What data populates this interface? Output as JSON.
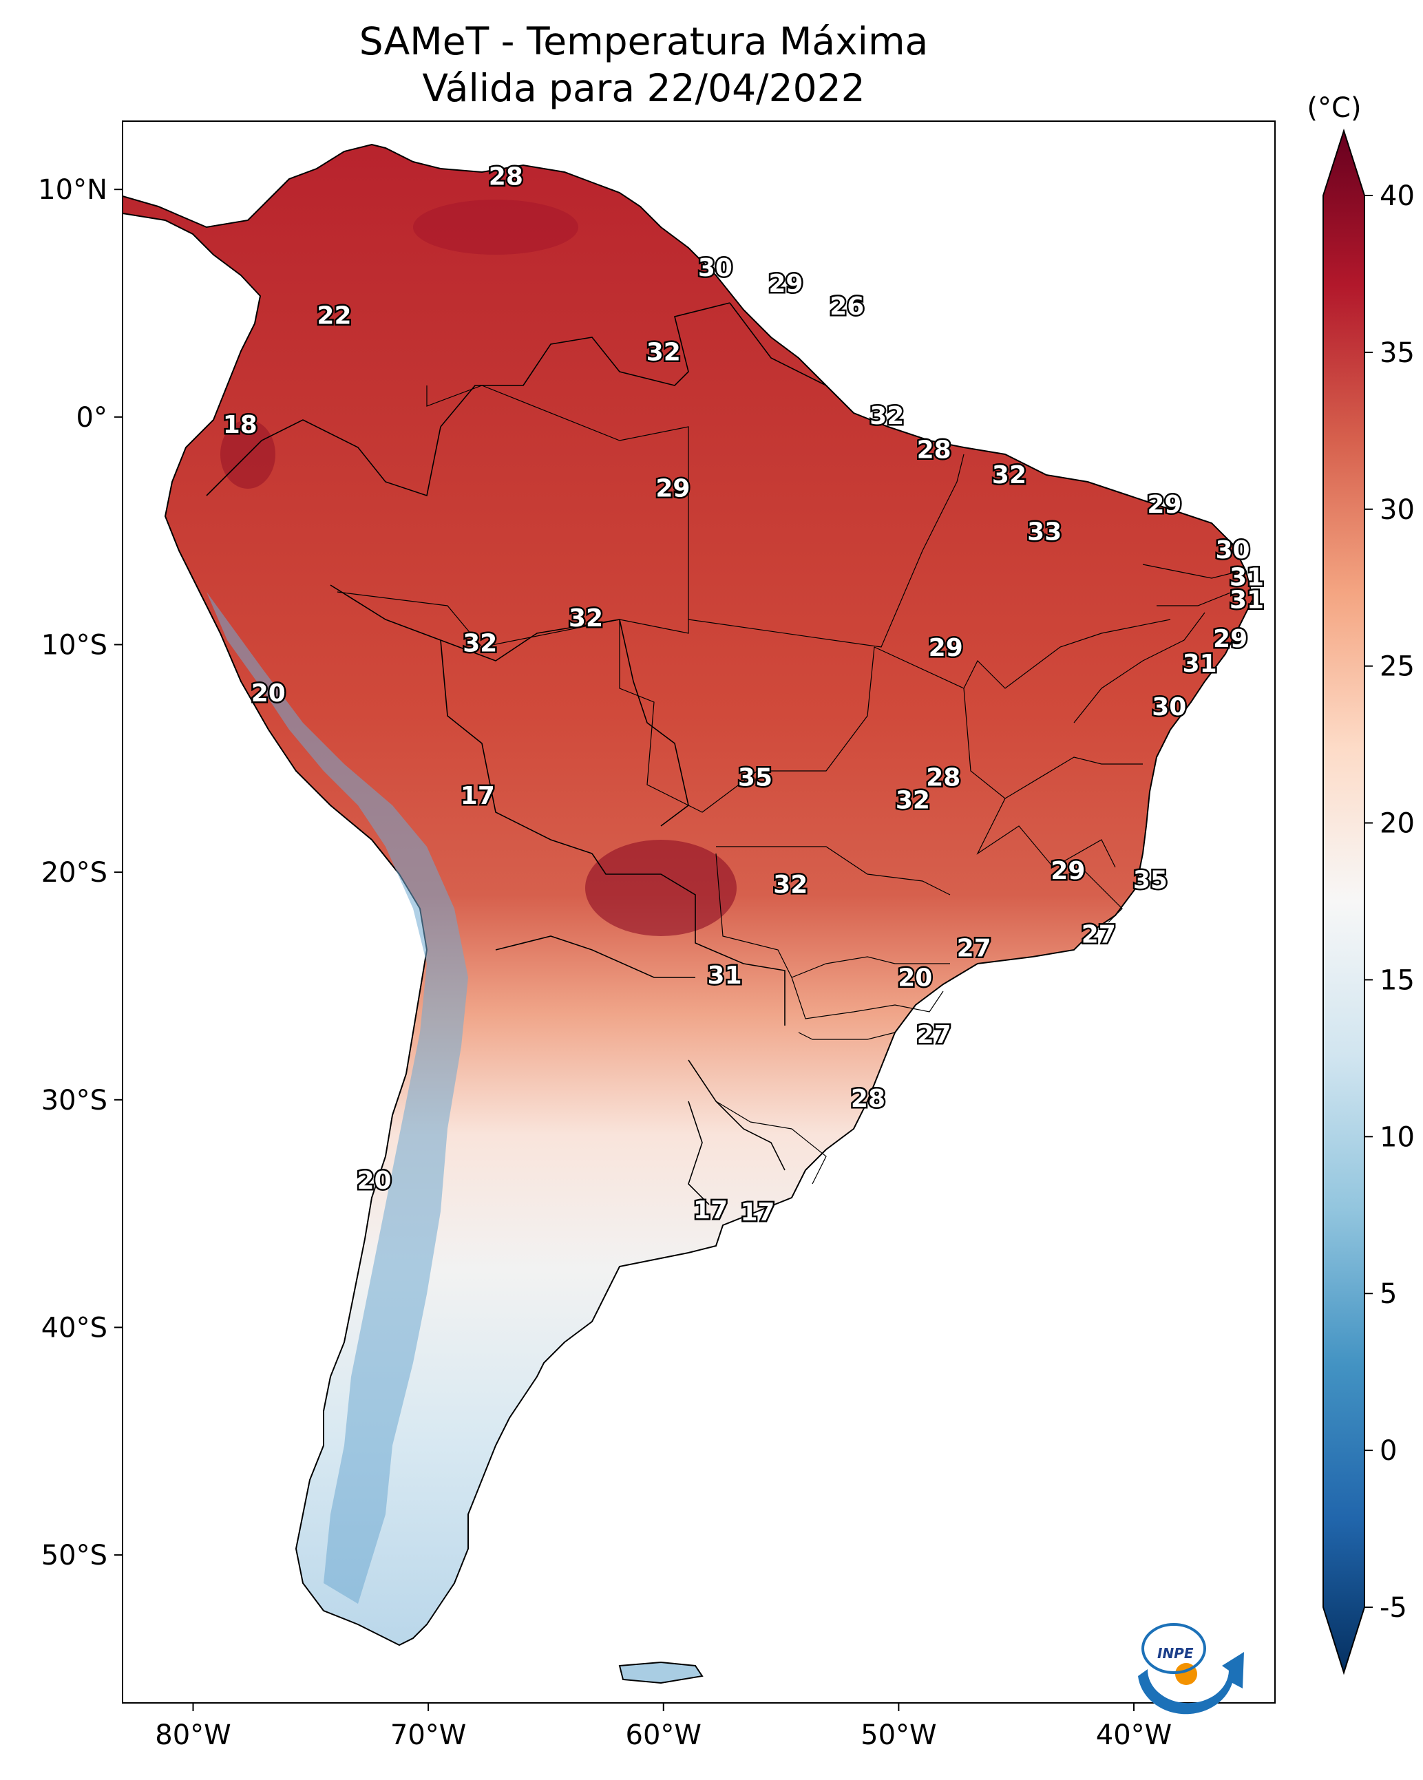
{
  "title": {
    "line1": "SAMeT - Temperatura Máxima",
    "line2": "Válida para 22/04/2022"
  },
  "axes": {
    "lat_labels": [
      "10°N",
      "0°",
      "10°S",
      "20°S",
      "30°S",
      "40°S",
      "50°S"
    ],
    "lat_values": [
      10,
      0,
      -10,
      -20,
      -30,
      -40,
      -50
    ],
    "lon_labels": [
      "80°W",
      "70°W",
      "60°W",
      "50°W",
      "40°W"
    ],
    "lon_values": [
      -80,
      -70,
      -60,
      -50,
      -40
    ],
    "extent": {
      "lon_min": -83,
      "lon_max": -34,
      "lat_min": -56.5,
      "lat_max": 13
    }
  },
  "colorbar": {
    "unit": "(°C)",
    "ticks": [
      "40",
      "35",
      "30",
      "25",
      "20",
      "15",
      "10",
      "5",
      "0",
      "-5"
    ],
    "tick_values": [
      40,
      35,
      30,
      25,
      20,
      15,
      10,
      5,
      0,
      -5
    ],
    "min": -5,
    "max": 40,
    "colors": [
      "#053061",
      "#2166ac",
      "#4393c3",
      "#92c5de",
      "#d1e5f0",
      "#f7f7f7",
      "#fddbc7",
      "#f4a582",
      "#d6604d",
      "#b2182b",
      "#67001f"
    ]
  },
  "contour_labels": [
    {
      "text": "28",
      "lon": -66.7,
      "lat": 10.5
    },
    {
      "text": "22",
      "lon": -74.0,
      "lat": 4.4
    },
    {
      "text": "30",
      "lon": -57.8,
      "lat": 6.5
    },
    {
      "text": "29",
      "lon": -54.8,
      "lat": 5.8
    },
    {
      "text": "26",
      "lon": -52.2,
      "lat": 4.8
    },
    {
      "text": "32",
      "lon": -60.0,
      "lat": 2.8
    },
    {
      "text": "18",
      "lon": -78.0,
      "lat": -0.4
    },
    {
      "text": "32",
      "lon": -50.5,
      "lat": 0.0
    },
    {
      "text": "28",
      "lon": -48.5,
      "lat": -1.5
    },
    {
      "text": "29",
      "lon": -59.6,
      "lat": -3.2
    },
    {
      "text": "32",
      "lon": -45.3,
      "lat": -2.6
    },
    {
      "text": "29",
      "lon": -38.7,
      "lat": -3.9
    },
    {
      "text": "33",
      "lon": -43.8,
      "lat": -5.1
    },
    {
      "text": "30",
      "lon": -35.8,
      "lat": -5.9
    },
    {
      "text": "31",
      "lon": -35.2,
      "lat": -7.1
    },
    {
      "text": "31",
      "lon": -35.2,
      "lat": -8.1
    },
    {
      "text": "32",
      "lon": -63.3,
      "lat": -8.9
    },
    {
      "text": "32",
      "lon": -67.8,
      "lat": -10.0
    },
    {
      "text": "29",
      "lon": -48.0,
      "lat": -10.2
    },
    {
      "text": "29",
      "lon": -35.9,
      "lat": -9.8
    },
    {
      "text": "31",
      "lon": -37.2,
      "lat": -10.9
    },
    {
      "text": "20",
      "lon": -76.8,
      "lat": -12.2
    },
    {
      "text": "30",
      "lon": -38.5,
      "lat": -12.8
    },
    {
      "text": "35",
      "lon": -56.1,
      "lat": -15.9
    },
    {
      "text": "28",
      "lon": -48.1,
      "lat": -15.9
    },
    {
      "text": "32",
      "lon": -49.4,
      "lat": -16.9
    },
    {
      "text": "17",
      "lon": -67.9,
      "lat": -16.7
    },
    {
      "text": "29",
      "lon": -42.8,
      "lat": -20.0
    },
    {
      "text": "35",
      "lon": -39.3,
      "lat": -20.4
    },
    {
      "text": "32",
      "lon": -54.6,
      "lat": -20.6
    },
    {
      "text": "27",
      "lon": -41.5,
      "lat": -22.8
    },
    {
      "text": "27",
      "lon": -46.8,
      "lat": -23.4
    },
    {
      "text": "20",
      "lon": -49.3,
      "lat": -24.7
    },
    {
      "text": "31",
      "lon": -57.4,
      "lat": -24.6
    },
    {
      "text": "27",
      "lon": -48.5,
      "lat": -27.2
    },
    {
      "text": "28",
      "lon": -51.3,
      "lat": -30.0
    },
    {
      "text": "20",
      "lon": -72.3,
      "lat": -33.6
    },
    {
      "text": "17",
      "lon": -58.0,
      "lat": -34.9
    },
    {
      "text": "17",
      "lon": -56.0,
      "lat": -35.0
    }
  ],
  "logo": {
    "text": "INPE"
  }
}
